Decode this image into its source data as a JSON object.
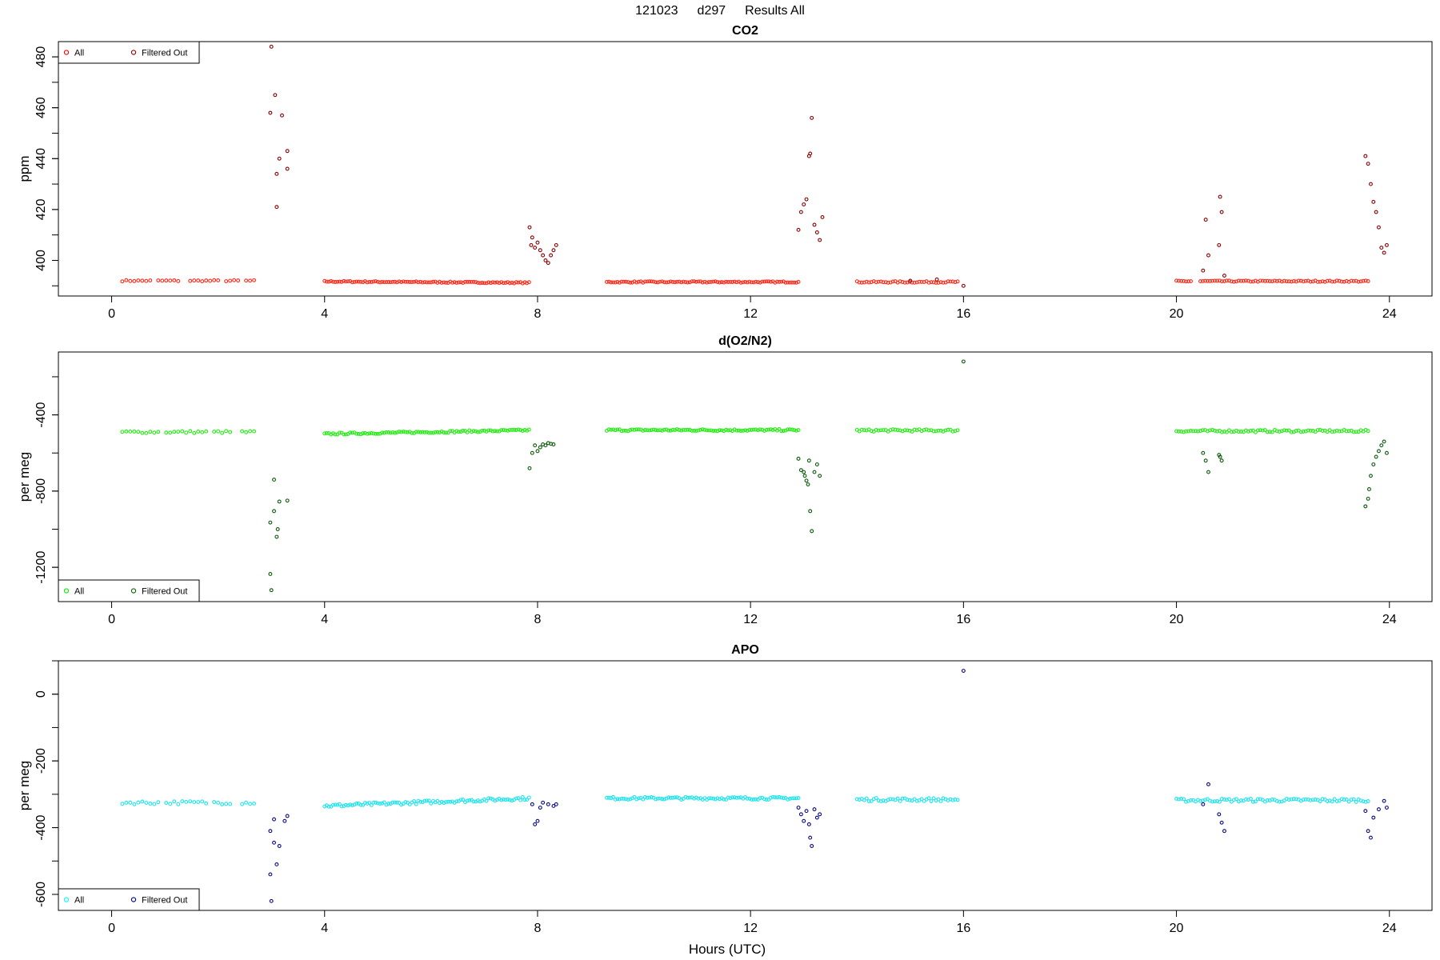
{
  "figure": {
    "title_parts": [
      "121023",
      "d297",
      "Results All"
    ],
    "xlabel": "Hours (UTC)"
  },
  "chart_data": [
    {
      "type": "scatter",
      "title": "CO2",
      "ylabel": "ppm",
      "xlabel": "",
      "xlim": [
        -1,
        24.8
      ],
      "ylim": [
        386,
        486
      ],
      "xticks": [
        0,
        4,
        8,
        12,
        16,
        20,
        24
      ],
      "yticks": [
        400,
        420,
        440,
        460,
        480
      ],
      "grid": false,
      "legend_placement": "top-left",
      "legend": [
        {
          "label": "All",
          "color": "#ff0000"
        },
        {
          "label": "Filtered Out",
          "color": "#8b0000"
        }
      ],
      "colors": {
        "all": "#ff2a1a",
        "filtered": "#8b0000"
      },
      "series": [
        {
          "name": "All",
          "segments": [
            {
              "x0": 0.2,
              "x1": 2.7,
              "y": 392.0,
              "step": 0.075,
              "noise": 0.25,
              "gaps": [
                [
                  0.75,
                  0.85
                ],
                [
                  1.3,
                  1.4
                ],
                [
                  2.0,
                  2.1
                ],
                [
                  2.4,
                  2.5
                ]
              ]
            },
            {
              "x0": 4.0,
              "x1": 7.85,
              "y": 391.7,
              "slope": -0.13,
              "step": 0.04,
              "noise": 0.25
            },
            {
              "x0": 9.3,
              "x1": 12.9,
              "y": 391.5,
              "step": 0.04,
              "noise": 0.25
            },
            {
              "x0": 14.0,
              "x1": 15.9,
              "y": 391.5,
              "step": 0.045,
              "noise": 0.3
            },
            {
              "x0": 20.0,
              "x1": 23.6,
              "y": 391.8,
              "step": 0.045,
              "noise": 0.25,
              "gaps": [
                [
                  20.3,
                  20.45
                ]
              ]
            }
          ]
        },
        {
          "name": "Filtered Out",
          "x": [
            2.98,
            3.0,
            3.07,
            3.1,
            3.1,
            3.15,
            3.2,
            3.3,
            3.3,
            7.85,
            7.88,
            7.9,
            7.95,
            8.0,
            8.05,
            8.1,
            8.15,
            8.2,
            8.25,
            8.3,
            8.35,
            12.9,
            12.95,
            13.0,
            13.05,
            13.1,
            13.12,
            13.15,
            13.2,
            13.25,
            13.3,
            13.35,
            15.0,
            15.5,
            16.0,
            20.5,
            20.55,
            20.6,
            20.8,
            20.82,
            20.85,
            20.9,
            23.55,
            23.6,
            23.65,
            23.7,
            23.75,
            23.8,
            23.85,
            23.9,
            23.95
          ],
          "y": [
            458,
            484,
            465,
            421,
            434,
            440,
            457,
            436,
            443,
            413,
            406,
            409,
            405,
            407,
            404,
            402,
            400,
            399,
            402,
            404,
            406,
            412,
            419,
            422,
            424,
            441,
            442,
            456,
            414,
            411,
            408,
            417,
            392,
            392.5,
            390,
            396,
            416,
            402,
            406,
            425,
            419,
            394,
            441,
            438,
            430,
            423,
            419,
            413,
            405,
            403,
            406
          ]
        }
      ]
    },
    {
      "type": "scatter",
      "title": "d(O2/N2)",
      "ylabel": "per meg",
      "xlabel": "",
      "xlim": [
        -1,
        24.8
      ],
      "ylim": [
        -1380,
        -70
      ],
      "xticks": [
        0,
        4,
        8,
        12,
        16,
        20,
        24
      ],
      "yticks": [
        -1200,
        -800,
        -400
      ],
      "grid": false,
      "legend_placement": "bottom-left",
      "legend": [
        {
          "label": "All",
          "color": "#00ee00"
        },
        {
          "label": "Filtered Out",
          "color": "#006400"
        }
      ],
      "colors": {
        "all": "#22ee11",
        "filtered": "#0a5a0a"
      },
      "series": [
        {
          "name": "All",
          "segments": [
            {
              "x0": 0.2,
              "x1": 2.7,
              "y": -490,
              "step": 0.075,
              "noise": 6,
              "gaps": [
                [
                  0.9,
                  1.0
                ],
                [
                  1.8,
                  1.9
                ],
                [
                  2.3,
                  2.4
                ]
              ]
            },
            {
              "x0": 4.0,
              "x1": 7.85,
              "y": -500,
              "slope": 5,
              "step": 0.04,
              "noise": 5
            },
            {
              "x0": 9.3,
              "x1": 12.9,
              "y": -480,
              "step": 0.04,
              "noise": 5
            },
            {
              "x0": 14.0,
              "x1": 15.9,
              "y": -482,
              "step": 0.045,
              "noise": 6
            },
            {
              "x0": 20.0,
              "x1": 23.6,
              "y": -485,
              "step": 0.045,
              "noise": 6
            }
          ]
        },
        {
          "name": "Filtered Out",
          "x": [
            2.98,
            2.98,
            3.0,
            3.05,
            3.05,
            3.1,
            3.12,
            3.15,
            3.3,
            7.85,
            7.9,
            7.95,
            8.0,
            8.05,
            8.1,
            8.15,
            8.2,
            8.25,
            8.3,
            12.9,
            12.95,
            13.0,
            13.02,
            13.05,
            13.08,
            13.1,
            13.12,
            13.15,
            13.2,
            13.25,
            13.3,
            20.5,
            20.55,
            20.6,
            20.8,
            20.82,
            20.85,
            23.55,
            23.6,
            23.62,
            23.65,
            23.7,
            23.75,
            23.8,
            23.85,
            23.9,
            23.95,
            16.0
          ],
          "y": [
            -965,
            -1235,
            -1320,
            -740,
            -905,
            -1040,
            -1000,
            -855,
            -850,
            -680,
            -600,
            -560,
            -590,
            -570,
            -555,
            -560,
            -548,
            -552,
            -555,
            -630,
            -690,
            -700,
            -720,
            -745,
            -765,
            -640,
            -905,
            -1010,
            -700,
            -660,
            -720,
            -600,
            -640,
            -700,
            -610,
            -620,
            -640,
            -880,
            -840,
            -790,
            -720,
            -660,
            -620,
            -590,
            -560,
            -540,
            -600,
            -120
          ]
        }
      ]
    },
    {
      "type": "scatter",
      "title": "APO",
      "ylabel": "per meg",
      "xlabel": "Hours (UTC)",
      "xlim": [
        -1,
        24.8
      ],
      "ylim": [
        -648,
        100
      ],
      "xticks": [
        0,
        4,
        8,
        12,
        16,
        20,
        24
      ],
      "yticks": [
        -600,
        -400,
        -200,
        0
      ],
      "grid": false,
      "legend_placement": "bottom-left",
      "legend": [
        {
          "label": "All",
          "color": "#00ffff"
        },
        {
          "label": "Filtered Out",
          "color": "#00008b"
        }
      ],
      "colors": {
        "all": "#1fe5ee",
        "filtered": "#0a0a80"
      },
      "series": [
        {
          "name": "All",
          "segments": [
            {
              "x0": 0.2,
              "x1": 2.7,
              "y": -325,
              "step": 0.075,
              "noise": 5,
              "gaps": [
                [
                  0.9,
                  1.0
                ],
                [
                  1.8,
                  1.9
                ],
                [
                  2.3,
                  2.4
                ]
              ]
            },
            {
              "x0": 4.0,
              "x1": 7.85,
              "y": -335,
              "slope": 6,
              "step": 0.04,
              "noise": 5
            },
            {
              "x0": 9.3,
              "x1": 12.9,
              "y": -312,
              "step": 0.04,
              "noise": 4
            },
            {
              "x0": 14.0,
              "x1": 15.9,
              "y": -316,
              "step": 0.045,
              "noise": 5
            },
            {
              "x0": 20.0,
              "x1": 23.6,
              "y": -318,
              "step": 0.045,
              "noise": 5
            }
          ]
        },
        {
          "name": "Filtered Out",
          "x": [
            2.98,
            2.98,
            3.0,
            3.05,
            3.05,
            3.1,
            3.15,
            3.25,
            3.3,
            7.9,
            7.95,
            8.0,
            8.05,
            8.1,
            8.2,
            8.3,
            8.35,
            12.9,
            12.95,
            13.0,
            13.05,
            13.1,
            13.12,
            13.15,
            13.2,
            13.25,
            13.3,
            20.5,
            20.6,
            20.8,
            20.85,
            20.9,
            23.55,
            23.6,
            23.65,
            23.7,
            23.8,
            23.9,
            23.95,
            16.0
          ],
          "y": [
            -410,
            -540,
            -620,
            -375,
            -445,
            -510,
            -455,
            -380,
            -365,
            -330,
            -390,
            -380,
            -340,
            -325,
            -330,
            -335,
            -330,
            -340,
            -360,
            -380,
            -350,
            -390,
            -430,
            -455,
            -345,
            -370,
            -360,
            -330,
            -270,
            -360,
            -385,
            -410,
            -350,
            -410,
            -430,
            -370,
            -345,
            -320,
            -340,
            70
          ]
        }
      ]
    }
  ]
}
